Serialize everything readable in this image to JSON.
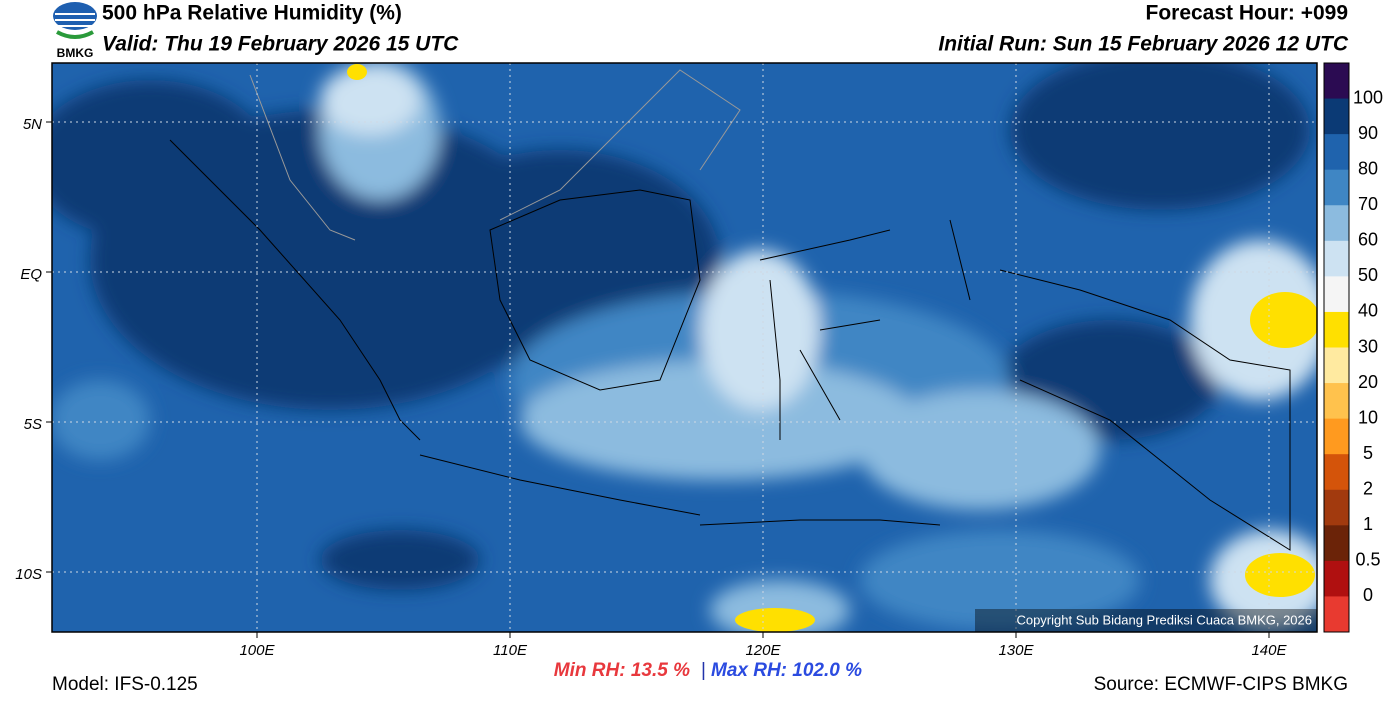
{
  "header": {
    "title": "500 hPa Relative Humidity (%)",
    "valid": "Valid: Thu 19 February 2026 15 UTC",
    "forecast_hour": "Forecast Hour: +099",
    "initial_run": "Initial Run: Sun 15 February 2026 12 UTC",
    "logo": "BMKG"
  },
  "map": {
    "lat_labels": [
      "5N",
      "EQ",
      "5S",
      "10S"
    ],
    "lon_labels": [
      "100E",
      "110E",
      "120E",
      "130E",
      "140E"
    ],
    "copyright": "Copyright Sub Bidang Prediksi Cuaca BMKG, 2026"
  },
  "colorbar": {
    "levels": [
      100,
      90,
      80,
      70,
      60,
      50,
      40,
      30,
      20,
      10,
      5,
      2,
      1,
      0.5,
      0
    ],
    "colors": [
      "#2b0b52",
      "#0b3a75",
      "#1f63ad",
      "#3f86c4",
      "#8cbbdf",
      "#cde2f2",
      "#f5f5f5",
      "#ffe000",
      "#ffeaa0",
      "#ffc24d",
      "#ff9a1f",
      "#d4540a",
      "#a23a0e",
      "#6b2308",
      "#b01010",
      "#e83a30"
    ]
  },
  "footer": {
    "model": "Model: IFS-0.125",
    "min_rh": "Min RH:  13.5 %",
    "separator": "|",
    "max_rh": "Max RH: 102.0 %",
    "source": "Source: ECMWF-CIPS BMKG"
  }
}
